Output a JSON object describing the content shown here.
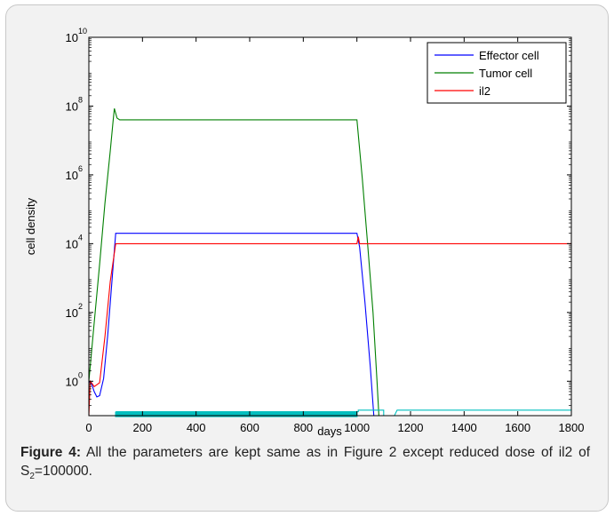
{
  "figure": {
    "caption_label": "Figure 4:",
    "caption_text_1": "All the parameters are kept same as in Figure 2 except reduced dose of il2 of S",
    "caption_sub": "2",
    "caption_text_2": "=100000."
  },
  "chart_data": {
    "type": "line",
    "xlabel": "days",
    "ylabel": "cell density",
    "xlim": [
      0,
      1800
    ],
    "ylim": [
      0.1,
      10000000000
    ],
    "yscale": "log",
    "grid": false,
    "legend_position": "top-right",
    "x_ticks": [
      "0",
      "200",
      "400",
      "600",
      "800",
      "1000",
      "1200",
      "1400",
      "1600",
      "1800"
    ],
    "y_ticks": [
      {
        "base": "10",
        "exp": "0",
        "value": 1
      },
      {
        "base": "10",
        "exp": "2",
        "value": 100
      },
      {
        "base": "10",
        "exp": "4",
        "value": 10000
      },
      {
        "base": "10",
        "exp": "6",
        "value": 1000000
      },
      {
        "base": "10",
        "exp": "8",
        "value": 100000000
      },
      {
        "base": "10",
        "exp": "10",
        "value": 10000000000
      }
    ],
    "series": [
      {
        "name": "Effector cell",
        "color": "#0000ff",
        "points": [
          [
            0,
            1.0
          ],
          [
            10,
            0.85
          ],
          [
            20,
            0.5
          ],
          [
            30,
            0.35
          ],
          [
            40,
            0.38
          ],
          [
            55,
            1.2
          ],
          [
            70,
            20
          ],
          [
            85,
            600
          ],
          [
            100,
            20000
          ],
          [
            200,
            20000
          ],
          [
            400,
            20000
          ],
          [
            600,
            20000
          ],
          [
            800,
            20000
          ],
          [
            1000,
            20000
          ],
          [
            1010,
            8000
          ],
          [
            1030,
            200
          ],
          [
            1050,
            2.5
          ],
          [
            1063,
            0.1
          ]
        ]
      },
      {
        "name": "Tumor cell",
        "color": "#007f00",
        "points": [
          [
            0,
            1.0
          ],
          [
            20,
            50
          ],
          [
            40,
            2500
          ],
          [
            60,
            150000
          ],
          [
            80,
            5000000
          ],
          [
            90,
            35000000
          ],
          [
            95,
            85000000
          ],
          [
            105,
            45000000
          ],
          [
            115,
            40000000
          ],
          [
            200,
            40000000
          ],
          [
            400,
            40000000
          ],
          [
            600,
            40000000
          ],
          [
            800,
            40000000
          ],
          [
            1000,
            40000000
          ],
          [
            1020,
            800000
          ],
          [
            1040,
            10000
          ],
          [
            1060,
            100
          ],
          [
            1075,
            1.0
          ],
          [
            1082,
            0.1
          ]
        ]
      },
      {
        "name": "il2",
        "color": "#ff0000",
        "points": [
          [
            0,
            0.1
          ],
          [
            5,
            1.0
          ],
          [
            10,
            0.9
          ],
          [
            20,
            0.7
          ],
          [
            40,
            0.9
          ],
          [
            60,
            20
          ],
          [
            80,
            800
          ],
          [
            100,
            10000
          ],
          [
            200,
            10000
          ],
          [
            400,
            10000
          ],
          [
            600,
            10000
          ],
          [
            800,
            10000
          ],
          [
            1000,
            10000
          ],
          [
            1005,
            16000
          ],
          [
            1010,
            10000
          ],
          [
            1200,
            10000
          ],
          [
            1400,
            10000
          ],
          [
            1600,
            10000
          ],
          [
            1800,
            10000
          ]
        ]
      },
      {
        "color": "#00bfbf",
        "points": [
          [
            100,
            0.13
          ],
          [
            200,
            0.13
          ],
          [
            400,
            0.13
          ],
          [
            600,
            0.13
          ],
          [
            800,
            0.13
          ],
          [
            1000,
            0.13
          ],
          [
            1005,
            0.13
          ],
          [
            1005,
            0.145
          ],
          [
            1100,
            0.145
          ],
          [
            1100,
            0.1
          ],
          [
            1140,
            0.1
          ],
          [
            1150,
            0.145
          ],
          [
            1200,
            0.145
          ],
          [
            1400,
            0.145
          ],
          [
            1600,
            0.145
          ],
          [
            1800,
            0.145
          ]
        ]
      }
    ]
  }
}
